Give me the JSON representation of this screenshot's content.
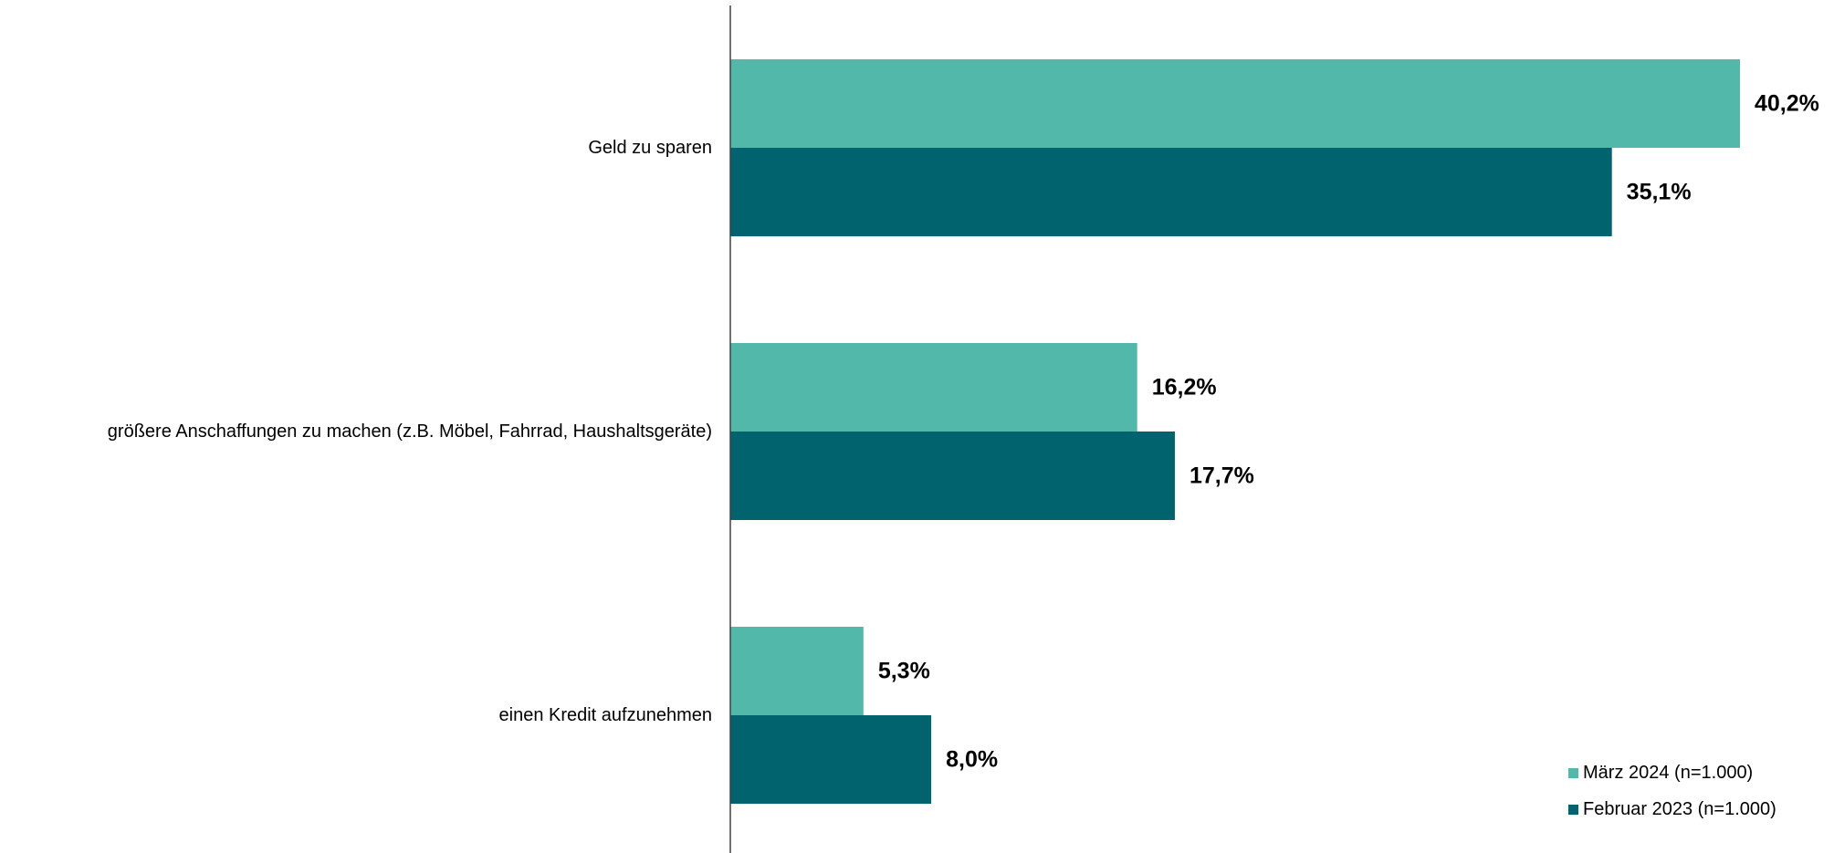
{
  "chart_data": {
    "type": "bar",
    "orientation": "horizontal",
    "categories": [
      "Geld zu sparen",
      "größere Anschaffungen zu machen (z.B. Möbel, Fahrrad, Haushaltsgeräte)",
      "einen Kredit aufzunehmen"
    ],
    "series": [
      {
        "name": "März 2024 (n=1.000)",
        "values": [
          40.2,
          16.2,
          5.3
        ],
        "labels": [
          "40,2%",
          "16,2%",
          "5,3%"
        ],
        "color": "#52b9aa"
      },
      {
        "name": "Februar 2023 (n=1.000)",
        "values": [
          35.1,
          17.7,
          8.0
        ],
        "labels": [
          "35,1%",
          "17,7%",
          "8,0%"
        ],
        "color": "#00636e"
      }
    ],
    "xlim": [
      0,
      42
    ],
    "grid": false,
    "legend_position": "bottom-right",
    "value_axis_visible": false
  }
}
